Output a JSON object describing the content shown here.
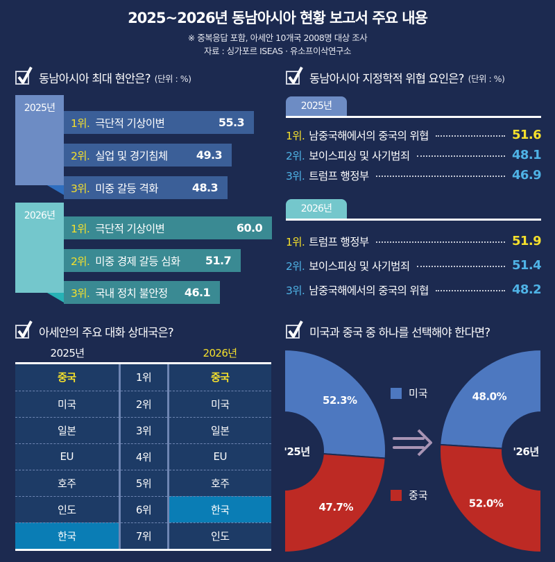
{
  "header": {
    "title": "2025~2026년 동남아시아 현황 보고서 주요 내용",
    "note": "※ 중복응답 포함, 아세안 10개국 2008명 대상 조사",
    "source": "자료 : 싱가포르 ISEAS · 유소프이삭연구소"
  },
  "colors": {
    "background": "#1c2a50",
    "accent_yellow": "#f5e02c",
    "accent_cyan": "#4fb3e6",
    "bar_2025": "#3b5f98",
    "tab_2025": "#6d8cc4",
    "bar_2026": "#3a8a93",
    "tab_2026": "#74c7cc",
    "usa": "#4d78c0",
    "china": "#bd2a24",
    "table_cell": "#1d3b66",
    "table_highlight": "#0a7db5"
  },
  "issues": {
    "title": "동남아시아 최대 현안은?",
    "unit": "(단위 : %)",
    "years": [
      {
        "year": "2025년",
        "items": [
          {
            "rank": "1위.",
            "label": "극단적 기상이변",
            "value": "55.3"
          },
          {
            "rank": "2위.",
            "label": "실업 및 경기침체",
            "value": "49.3"
          },
          {
            "rank": "3위.",
            "label": "미중 갈등 격화",
            "value": "48.3"
          }
        ]
      },
      {
        "year": "2026년",
        "items": [
          {
            "rank": "1위.",
            "label": "극단적 기상이변",
            "value": "60.0"
          },
          {
            "rank": "2위.",
            "label": "미중 경제 갈등 심화",
            "value": "51.7"
          },
          {
            "rank": "3위.",
            "label": "국내 정치 불안정",
            "value": "46.1"
          }
        ]
      }
    ]
  },
  "threats": {
    "title": "동남아시아 지정학적 위협 요인은?",
    "unit": "(단위 : %)",
    "years": [
      {
        "year": "2025년",
        "items": [
          {
            "rank": "1위.",
            "label": "남중국해에서의 중국의 위협",
            "value": "51.6"
          },
          {
            "rank": "2위.",
            "label": "보이스피싱 및 사기범죄",
            "value": "48.1"
          },
          {
            "rank": "3위.",
            "label": "트럼프 행정부",
            "value": "46.9"
          }
        ]
      },
      {
        "year": "2026년",
        "items": [
          {
            "rank": "1위.",
            "label": "트럼프 행정부",
            "value": "51.9"
          },
          {
            "rank": "2위.",
            "label": "보이스피싱 및 사기범죄",
            "value": "51.4"
          },
          {
            "rank": "3위.",
            "label": "남중국해에서의 중국의 위협",
            "value": "48.2"
          }
        ]
      }
    ]
  },
  "partners": {
    "title": "아세안의 주요 대화 상대국은?",
    "col_2025": "2025년",
    "col_2026": "2026년",
    "rows": [
      {
        "y2025": "중국",
        "rank": "1위",
        "y2026": "중국"
      },
      {
        "y2025": "미국",
        "rank": "2위",
        "y2026": "미국"
      },
      {
        "y2025": "일본",
        "rank": "3위",
        "y2026": "일본"
      },
      {
        "y2025": "EU",
        "rank": "4위",
        "y2026": "EU"
      },
      {
        "y2025": "호주",
        "rank": "5위",
        "y2026": "호주"
      },
      {
        "y2025": "인도",
        "rank": "6위",
        "y2026": "한국"
      },
      {
        "y2025": "한국",
        "rank": "7위",
        "y2026": "인도"
      }
    ]
  },
  "choice": {
    "title": "미국과 중국 중 하나를 선택해야 한다면?",
    "legend_usa": "미국",
    "legend_china": "중국",
    "arrow_icon": "double-arrow-right"
  },
  "chart_data": {
    "type": "pie",
    "title": "미국과 중국 중 하나를 선택해야 한다면?",
    "categories": [
      "미국",
      "중국"
    ],
    "series": [
      {
        "name": "'25년",
        "values": [
          52.3,
          47.7
        ],
        "labels": [
          "52.3%",
          "47.7%"
        ]
      },
      {
        "name": "'26년",
        "values": [
          48.0,
          52.0
        ],
        "labels": [
          "48.0%",
          "52.0%"
        ]
      }
    ],
    "legend": [
      "미국",
      "중국"
    ],
    "legend_placement": "center",
    "unit": "%"
  }
}
